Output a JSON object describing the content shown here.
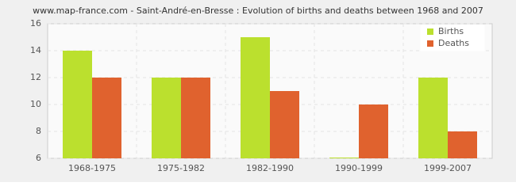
{
  "chart_data": {
    "type": "bar",
    "title": "www.map-france.com - Saint-André-en-Bresse : Evolution of births and deaths between 1968 and 2007",
    "categories": [
      "1968-1975",
      "1975-1982",
      "1982-1990",
      "1990-1999",
      "1999-2007"
    ],
    "series": [
      {
        "name": "Births",
        "color": "#bbe02e",
        "values": [
          14,
          12,
          15,
          6,
          12
        ]
      },
      {
        "name": "Deaths",
        "color": "#e0622e",
        "values": [
          12,
          12,
          11,
          10,
          8
        ]
      }
    ],
    "ylim": [
      6,
      16
    ],
    "yticks": [
      6,
      8,
      10,
      12,
      14,
      16
    ],
    "grid": true,
    "legend": "top-right"
  }
}
